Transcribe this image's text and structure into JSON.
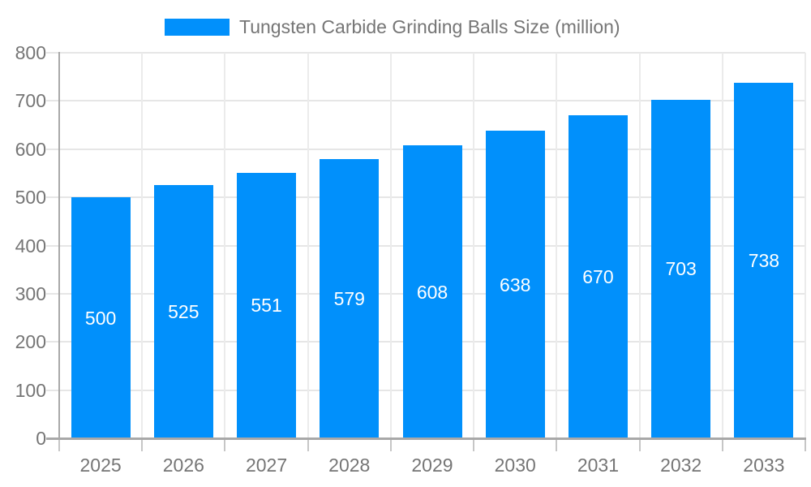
{
  "legend": {
    "label": "Tungsten Carbide Grinding Balls Size (million)"
  },
  "chart_data": {
    "type": "bar",
    "title": "Tungsten Carbide Grinding Balls Size (million)",
    "series_name": "Tungsten Carbide Grinding Balls Size (million)",
    "categories": [
      "2025",
      "2026",
      "2027",
      "2028",
      "2029",
      "2030",
      "2031",
      "2032",
      "2033"
    ],
    "values": [
      500,
      525,
      551,
      579,
      608,
      638,
      670,
      703,
      738
    ],
    "xlabel": "",
    "ylabel": "",
    "ylim": [
      0,
      800
    ],
    "ytick_step": 100,
    "yticks": [
      0,
      100,
      200,
      300,
      400,
      500,
      600,
      700,
      800
    ],
    "grid": true,
    "legend_position": "top",
    "value_labels_position": "inside-center",
    "colors": {
      "bar": "#0190fb",
      "value_label": "#ffffff",
      "axis_text": "#757575",
      "grid_line": "#e6e6e6",
      "axis_line": "#a8a8a8"
    }
  }
}
